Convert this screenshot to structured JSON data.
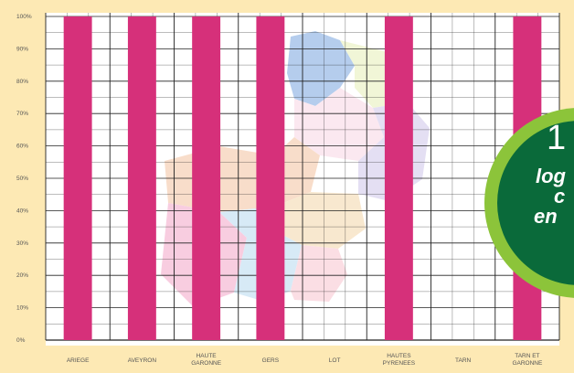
{
  "chart_data": {
    "type": "bar",
    "title": "",
    "xlabel": "",
    "ylabel": "",
    "ylim": [
      0,
      100
    ],
    "yticks": [
      "0%",
      "10%",
      "20%",
      "30%",
      "40%",
      "50%",
      "60%",
      "70%",
      "80%",
      "90%",
      "100%"
    ],
    "categories": [
      [
        "ARIEGE"
      ],
      [
        "AVEYRON"
      ],
      [
        "HAUTE",
        "GARONNE"
      ],
      [
        "GERS"
      ],
      [
        "LOT"
      ],
      [
        "HAUTES",
        "PYRENEES"
      ],
      [
        "TARN"
      ],
      [
        "TARN ET",
        "GARONNE"
      ]
    ],
    "values": [
      100,
      100,
      100,
      100,
      null,
      100,
      null,
      100
    ],
    "grid": true,
    "legend": "none"
  },
  "badge": {
    "number": "1",
    "line1": "log",
    "line2": "c",
    "line3": "en"
  },
  "colors": {
    "background": "#fde9b4",
    "plot_bg": "#ffffff",
    "bar": "#d6307a",
    "grid": "#222222",
    "badge_outer": "#8cc43a",
    "badge_inner": "#0a6a3a",
    "map_regions": [
      "#7aa6e0",
      "#f4c3a0",
      "#f4a6c8",
      "#b8d9f0",
      "#cfc6ea",
      "#e6f0b8",
      "#f8c4cf"
    ]
  }
}
